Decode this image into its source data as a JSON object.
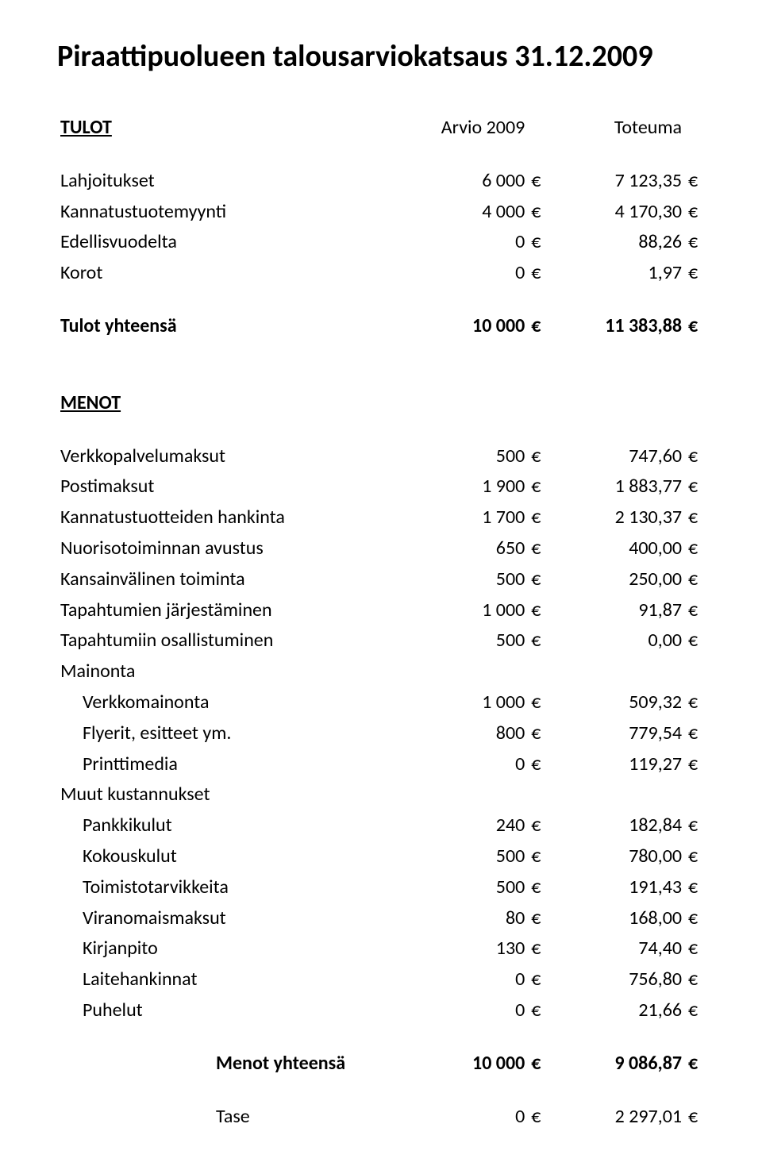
{
  "title": "Piraattipuolueen talousarviokatsaus 31.12.2009",
  "currency_symbol": "€",
  "sections": {
    "tulot": {
      "heading": "TULOT",
      "col1": "Arvio 2009",
      "col2": "Toteuma",
      "rows": [
        {
          "label": "Lahjoitukset",
          "v1": "6 000",
          "v2": "7 123,35"
        },
        {
          "label": "Kannatustuotemyynti",
          "v1": "4 000",
          "v2": "4 170,30"
        },
        {
          "label": "Edellisvuodelta",
          "v1": "0",
          "v2": "88,26"
        },
        {
          "label": "Korot",
          "v1": "0",
          "v2": "1,97"
        }
      ],
      "total": {
        "label": "Tulot yhteensä",
        "v1": "10 000",
        "v2": "11 383,88"
      }
    },
    "menot": {
      "heading": "MENOT",
      "rows": [
        {
          "label": "Verkkopalvelumaksut",
          "v1": "500",
          "v2": "747,60"
        },
        {
          "label": "Postimaksut",
          "v1": "1 900",
          "v2": "1 883,77"
        },
        {
          "label": "Kannatustuotteiden hankinta",
          "v1": "1 700",
          "v2": "2 130,37"
        },
        {
          "label": "Nuorisotoiminnan avustus",
          "v1": "650",
          "v2": "400,00"
        },
        {
          "label": "Kansainvälinen toiminta",
          "v1": "500",
          "v2": "250,00"
        },
        {
          "label": "Tapahtumien järjestäminen",
          "v1": "1 000",
          "v2": "91,87"
        },
        {
          "label": "Tapahtumiin osallistuminen",
          "v1": "500",
          "v2": "0,00"
        },
        {
          "label": "Mainonta",
          "v1": "",
          "v2": "",
          "noEuro": true
        },
        {
          "label": "Verkkomainonta",
          "v1": "1 000",
          "v2": "509,32",
          "indent": true
        },
        {
          "label": "Flyerit, esitteet ym.",
          "v1": "800",
          "v2": "779,54",
          "indent": true
        },
        {
          "label": "Printtimedia",
          "v1": "0",
          "v2": "119,27",
          "indent": true
        },
        {
          "label": "Muut kustannukset",
          "v1": "",
          "v2": "",
          "noEuro": true
        },
        {
          "label": "Pankkikulut",
          "v1": "240",
          "v2": "182,84",
          "indent": true
        },
        {
          "label": "Kokouskulut",
          "v1": "500",
          "v2": "780,00",
          "indent": true
        },
        {
          "label": "Toimistotarvikkeita",
          "v1": "500",
          "v2": "191,43",
          "indent": true
        },
        {
          "label": "Viranomaismaksut",
          "v1": "80",
          "v2": "168,00",
          "indent": true
        },
        {
          "label": "Kirjanpito",
          "v1": "130",
          "v2": "74,40",
          "indent": true
        },
        {
          "label": "Laitehankinnat",
          "v1": "0",
          "v2": "756,80",
          "indent": true
        },
        {
          "label": "Puhelut",
          "v1": "0",
          "v2": "21,66",
          "indent": true
        }
      ],
      "total": {
        "label": "Menot yhteensä",
        "v1": "10 000",
        "v2": "9 086,87"
      }
    },
    "tase": {
      "label": "Tase",
      "v1": "0",
      "v2": "2 297,01"
    }
  }
}
